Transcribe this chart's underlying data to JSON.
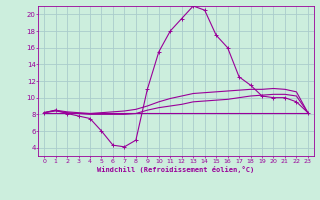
{
  "background_color": "#cceedd",
  "grid_color": "#aacccc",
  "line_color": "#990099",
  "xlabel": "Windchill (Refroidissement éolien,°C)",
  "xlim": [
    -0.5,
    23.5
  ],
  "ylim": [
    3.0,
    21.0
  ],
  "yticks": [
    4,
    6,
    8,
    10,
    12,
    14,
    16,
    18,
    20
  ],
  "xticks": [
    0,
    1,
    2,
    3,
    4,
    5,
    6,
    7,
    8,
    9,
    10,
    11,
    12,
    13,
    14,
    15,
    16,
    17,
    18,
    19,
    20,
    21,
    22,
    23
  ],
  "series": [
    {
      "x": [
        0,
        1,
        2,
        3,
        4,
        5,
        6,
        7,
        8,
        9,
        10,
        11,
        12,
        13,
        14,
        15,
        16,
        17,
        18,
        19,
        20,
        21,
        22,
        23
      ],
      "y": [
        8.2,
        8.5,
        8.1,
        7.8,
        7.5,
        6.0,
        4.3,
        4.1,
        4.9,
        11.0,
        15.5,
        18.0,
        19.5,
        21.0,
        20.5,
        17.5,
        16.0,
        12.5,
        11.5,
        10.2,
        10.0,
        10.0,
        9.5,
        8.2
      ],
      "marker": true
    },
    {
      "x": [
        0,
        1,
        2,
        3,
        4,
        5,
        6,
        7,
        8,
        9,
        10,
        11,
        12,
        13,
        14,
        15,
        16,
        17,
        18,
        19,
        20,
        21,
        22,
        23
      ],
      "y": [
        8.2,
        8.5,
        8.3,
        8.2,
        8.1,
        8.2,
        8.3,
        8.4,
        8.6,
        9.0,
        9.5,
        9.9,
        10.2,
        10.5,
        10.6,
        10.7,
        10.8,
        10.9,
        11.0,
        11.0,
        11.1,
        11.0,
        10.7,
        8.2
      ],
      "marker": false
    },
    {
      "x": [
        0,
        1,
        2,
        3,
        4,
        5,
        6,
        7,
        8,
        9,
        10,
        11,
        12,
        13,
        14,
        15,
        16,
        17,
        18,
        19,
        20,
        21,
        22,
        23
      ],
      "y": [
        8.2,
        8.4,
        8.2,
        8.1,
        8.0,
        8.0,
        8.0,
        8.0,
        8.1,
        8.5,
        8.8,
        9.0,
        9.2,
        9.5,
        9.6,
        9.7,
        9.8,
        10.0,
        10.2,
        10.3,
        10.4,
        10.4,
        10.2,
        8.2
      ],
      "marker": false
    },
    {
      "x": [
        0,
        23
      ],
      "y": [
        8.2,
        8.2
      ],
      "marker": false
    }
  ]
}
